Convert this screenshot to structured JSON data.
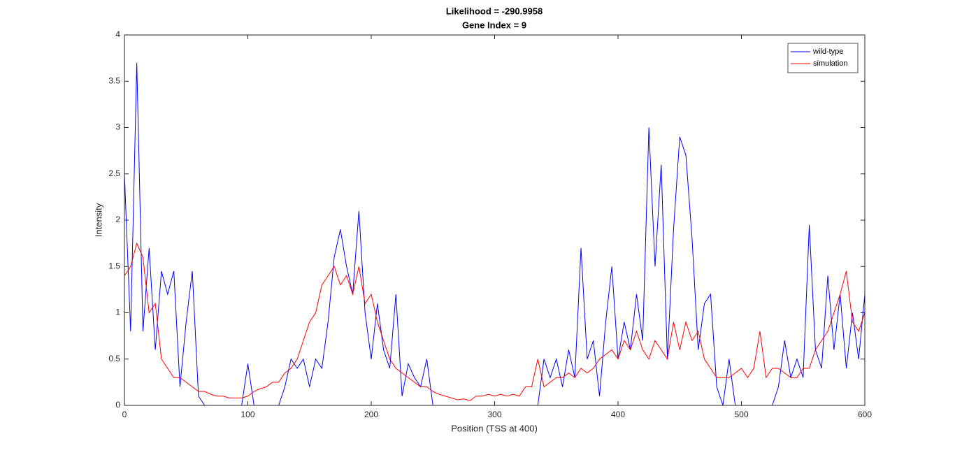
{
  "chart_data": {
    "type": "line",
    "title": [
      "Likelihood = -290.9958",
      "Gene Index = 9"
    ],
    "xlabel": "Position (TSS at 400)",
    "ylabel": "Intensity",
    "x": [
      0,
      5,
      10,
      15,
      20,
      25,
      30,
      35,
      40,
      45,
      50,
      55,
      60,
      65,
      70,
      75,
      80,
      85,
      90,
      95,
      100,
      105,
      110,
      115,
      120,
      125,
      130,
      135,
      140,
      145,
      150,
      155,
      160,
      165,
      170,
      175,
      180,
      185,
      190,
      195,
      200,
      205,
      210,
      215,
      220,
      225,
      230,
      235,
      240,
      245,
      250,
      255,
      260,
      265,
      270,
      275,
      280,
      285,
      290,
      295,
      300,
      305,
      310,
      315,
      320,
      325,
      330,
      335,
      340,
      345,
      350,
      355,
      360,
      365,
      370,
      375,
      380,
      385,
      390,
      395,
      400,
      405,
      410,
      415,
      420,
      425,
      430,
      435,
      440,
      445,
      450,
      455,
      460,
      465,
      470,
      475,
      480,
      485,
      490,
      495,
      500,
      505,
      510,
      515,
      520,
      525,
      530,
      535,
      540,
      545,
      550,
      555,
      560,
      565,
      570,
      575,
      580,
      585,
      590,
      595,
      600
    ],
    "series": [
      {
        "name": "wild-type",
        "color": "#0000ff",
        "values": [
          2.5,
          0.8,
          3.7,
          0.8,
          1.7,
          0.6,
          1.45,
          1.2,
          1.45,
          0.2,
          0.9,
          1.45,
          0.1,
          0,
          0,
          0,
          0,
          0,
          0,
          0,
          0.45,
          0,
          0,
          0,
          0,
          0,
          0.2,
          0.5,
          0.4,
          0.5,
          0.2,
          0.5,
          0.4,
          0.9,
          1.6,
          1.9,
          1.5,
          1.2,
          2.1,
          1.0,
          0.5,
          1.1,
          0.6,
          0.4,
          1.2,
          0.1,
          0.45,
          0.3,
          0.2,
          0.5,
          0,
          0,
          0,
          0,
          0,
          0,
          0,
          0,
          0,
          0,
          0,
          0,
          0,
          0,
          0,
          0,
          0,
          0,
          0.5,
          0.3,
          0.5,
          0.2,
          0.6,
          0.3,
          1.7,
          0.5,
          0.7,
          0.1,
          0.9,
          1.5,
          0.5,
          0.9,
          0.6,
          1.2,
          0.7,
          3.0,
          1.5,
          2.6,
          0.5,
          1.9,
          2.9,
          2.7,
          1.8,
          0.6,
          1.1,
          1.2,
          0.2,
          0,
          0.5,
          0,
          0,
          0,
          0,
          0,
          0,
          0,
          0.2,
          0.7,
          0.3,
          0.5,
          0.3,
          1.95,
          0.6,
          0.4,
          1.4,
          0.6,
          1.2,
          0.4,
          1.0,
          0.5,
          1.2
        ]
      },
      {
        "name": "simulation",
        "color": "#ff0000",
        "values": [
          1.4,
          1.5,
          1.75,
          1.6,
          1.0,
          1.1,
          0.5,
          0.4,
          0.3,
          0.3,
          0.25,
          0.2,
          0.15,
          0.15,
          0.12,
          0.1,
          0.1,
          0.08,
          0.08,
          0.08,
          0.1,
          0.15,
          0.18,
          0.2,
          0.25,
          0.25,
          0.35,
          0.4,
          0.5,
          0.7,
          0.9,
          1.0,
          1.3,
          1.4,
          1.5,
          1.3,
          1.4,
          1.2,
          1.5,
          1.1,
          1.2,
          0.9,
          0.7,
          0.5,
          0.4,
          0.35,
          0.3,
          0.25,
          0.2,
          0.2,
          0.15,
          0.12,
          0.1,
          0.08,
          0.06,
          0.07,
          0.05,
          0.1,
          0.1,
          0.12,
          0.1,
          0.12,
          0.1,
          0.12,
          0.1,
          0.2,
          0.2,
          0.5,
          0.2,
          0.25,
          0.3,
          0.3,
          0.35,
          0.3,
          0.4,
          0.35,
          0.4,
          0.5,
          0.55,
          0.6,
          0.5,
          0.7,
          0.6,
          0.8,
          0.6,
          0.5,
          0.7,
          0.6,
          0.5,
          0.9,
          0.6,
          0.9,
          0.7,
          0.8,
          0.5,
          0.4,
          0.3,
          0.3,
          0.3,
          0.35,
          0.4,
          0.3,
          0.4,
          0.8,
          0.3,
          0.4,
          0.4,
          0.35,
          0.3,
          0.3,
          0.4,
          0.4,
          0.6,
          0.7,
          0.8,
          1.0,
          1.2,
          1.45,
          0.9,
          0.8,
          1.0
        ]
      }
    ],
    "xlim": [
      0,
      600
    ],
    "xticks": [
      0,
      100,
      200,
      300,
      400,
      500,
      600
    ],
    "ylim": [
      0,
      4
    ],
    "yticks": [
      0,
      0.5,
      1,
      1.5,
      2,
      2.5,
      3,
      3.5,
      4
    ],
    "grid": false,
    "legend": "northeast"
  }
}
